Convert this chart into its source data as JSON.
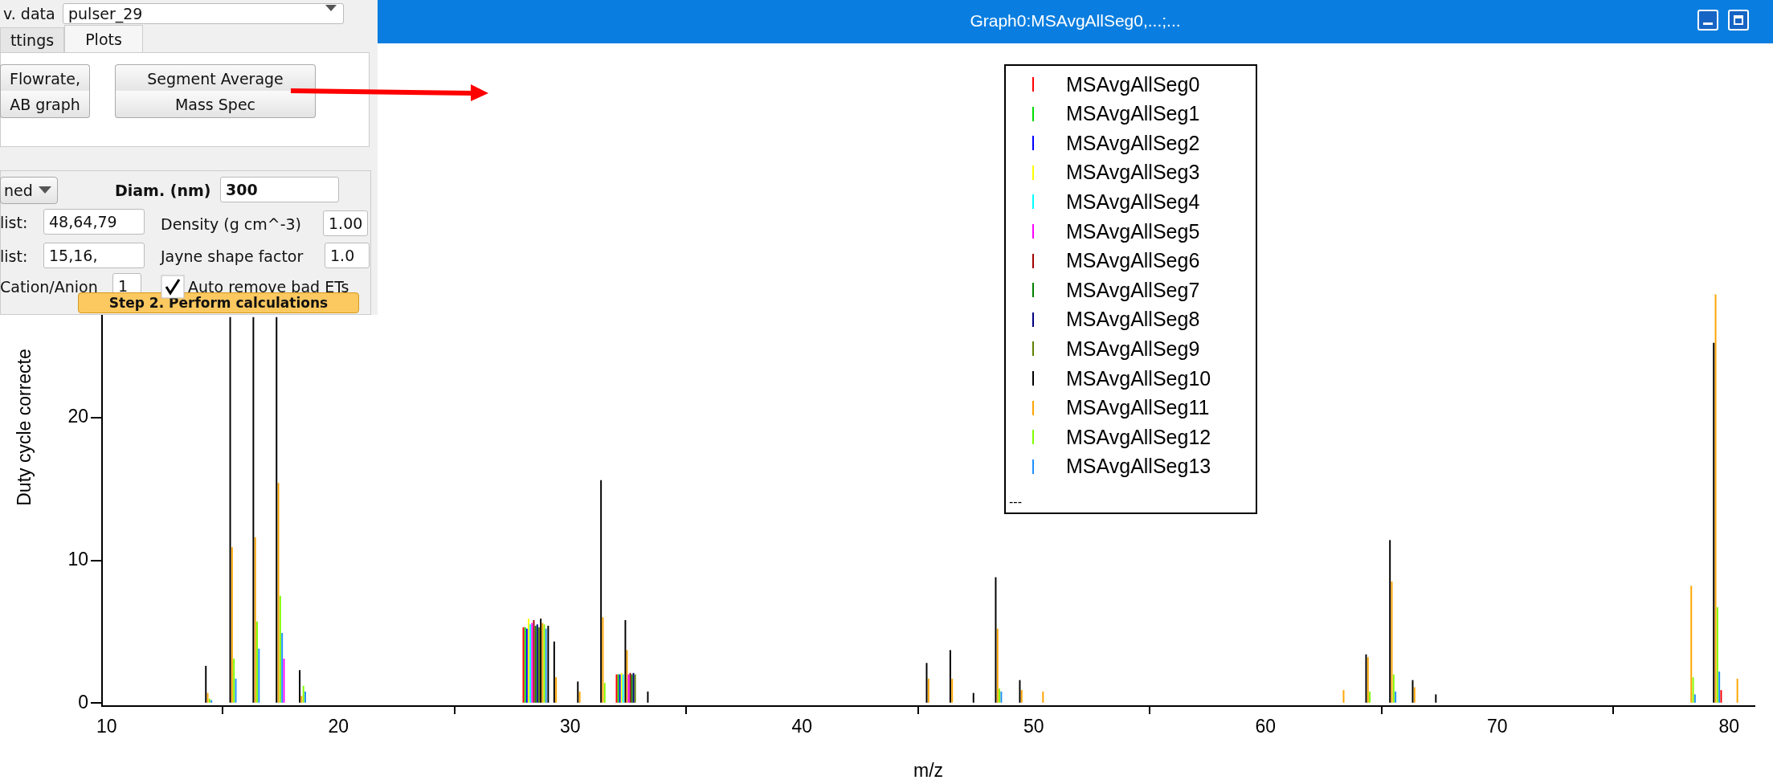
{
  "chart_data": {
    "type": "bar",
    "title": "Graph0:MSAvgAllSeg0,...;...",
    "xlabel": "m/z",
    "ylabel": "Duty cycle correcte",
    "xlim": [
      9.8,
      81.1
    ],
    "ylim": [
      -0.2,
      45
    ],
    "xticks": [
      10,
      20,
      30,
      40,
      50,
      60,
      70,
      80
    ],
    "yticks": [
      0,
      10,
      20
    ],
    "legend": "top",
    "series": [
      {
        "name": "MSAvgAllSeg0",
        "color": "#ff0000",
        "x": [
          27.98,
          32.0,
          79.66
        ],
        "values": [
          5.3,
          2.0,
          0.9
        ]
      },
      {
        "name": "MSAvgAllSeg1",
        "color": "#00dd00",
        "x": [
          28.055,
          32.07
        ],
        "values": [
          5.3,
          2.0
        ]
      },
      {
        "name": "MSAvgAllSeg2",
        "color": "#0000ff",
        "x": [
          28.13,
          32.14
        ],
        "values": [
          5.2,
          2.0
        ]
      },
      {
        "name": "MSAvgAllSeg3",
        "color": "#ffff00",
        "x": [
          28.205,
          32.21
        ],
        "values": [
          5.9,
          2.1
        ]
      },
      {
        "name": "MSAvgAllSeg4",
        "color": "#00ffff",
        "x": [
          28.28,
          32.28
        ],
        "values": [
          5.5,
          2.0
        ]
      },
      {
        "name": "MSAvgAllSeg5",
        "color": "#ff00ff",
        "x": [
          17.65,
          28.355,
          32.52
        ],
        "values": [
          3.1,
          5.6,
          2.0
        ]
      },
      {
        "name": "MSAvgAllSeg6",
        "color": "#a00000",
        "x": [
          28.43,
          32.59
        ],
        "values": [
          5.8,
          2.1
        ]
      },
      {
        "name": "MSAvgAllSeg7",
        "color": "#008000",
        "x": [
          28.505,
          32.66
        ],
        "values": [
          5.4,
          2.0
        ]
      },
      {
        "name": "MSAvgAllSeg8",
        "color": "#000080",
        "x": [
          28.58,
          32.73
        ],
        "values": [
          5.5,
          2.1
        ]
      },
      {
        "name": "MSAvgAllSeg9",
        "color": "#608000",
        "x": [
          28.655,
          32.8
        ],
        "values": [
          5.3,
          2.0
        ]
      },
      {
        "name": "MSAvgAllSeg10",
        "color": "#000000",
        "x": [
          14.28,
          15.33,
          16.33,
          17.33,
          18.33,
          28.73,
          29.05,
          29.31,
          30.33,
          31.33,
          32.38,
          33.35,
          45.38,
          46.4,
          47.4,
          48.36,
          49.4,
          64.34,
          65.37,
          66.35,
          67.35,
          79.34
        ],
        "values": [
          2.6,
          27,
          27,
          27,
          2.3,
          5.9,
          5.4,
          4.3,
          1.5,
          15.6,
          5.8,
          0.8,
          2.8,
          3.7,
          0.7,
          8.8,
          1.6,
          3.4,
          11.4,
          1.6,
          0.6,
          25.2
        ]
      },
      {
        "name": "MSAvgAllSeg11",
        "color": "#ffa500",
        "x": [
          14.36,
          15.41,
          16.41,
          17.41,
          18.41,
          28.805,
          29.39,
          30.41,
          31.41,
          32.45,
          45.46,
          46.48,
          48.44,
          49.48,
          50.4,
          63.37,
          64.42,
          65.45,
          66.43,
          78.37,
          79.42,
          80.36
        ],
        "values": [
          0.7,
          10.9,
          11.6,
          15.4,
          0.5,
          5.6,
          1.8,
          0.8,
          6.0,
          3.7,
          1.7,
          1.7,
          5.2,
          0.9,
          0.8,
          0.9,
          3.2,
          8.5,
          1.1,
          8.2,
          28.6,
          1.7
        ]
      },
      {
        "name": "MSAvgAllSeg12",
        "color": "#80ff00",
        "x": [
          14.44,
          15.49,
          16.49,
          17.49,
          18.49,
          28.88,
          31.49,
          48.52,
          64.5,
          65.53,
          78.45,
          79.5
        ],
        "values": [
          0.3,
          3.1,
          5.7,
          7.5,
          1.2,
          5.5,
          1.4,
          1.0,
          0.8,
          2.0,
          1.8,
          6.7
        ]
      },
      {
        "name": "MSAvgAllSeg13",
        "color": "#1e90ff",
        "x": [
          14.52,
          15.57,
          16.57,
          17.57,
          18.57,
          28.955,
          48.6,
          65.61,
          78.53,
          79.58
        ],
        "values": [
          0.2,
          1.7,
          3.8,
          4.9,
          0.8,
          5.2,
          0.8,
          0.8,
          0.6,
          2.2
        ]
      }
    ],
    "annotations": [
      "v. data",
      "pulser_29",
      "ttings",
      "Plots",
      "Flowrate,",
      "AB graph",
      "Segment Average",
      "Mass Spec",
      "ned",
      "Diam. (nm)",
      "300",
      "list:",
      "48,64,79",
      "Density (g cm^-3)",
      "1.00",
      "list:",
      "15,16,",
      "Jayne shape factor",
      "1.0",
      "Cation/Anion",
      "1",
      "Auto remove bad ETs",
      "Step 2. Perform calculations",
      "---"
    ]
  }
}
